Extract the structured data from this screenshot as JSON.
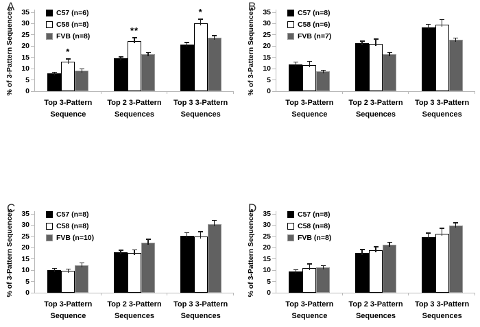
{
  "figure": {
    "background": "#ffffff",
    "axis_color": "#b9b9b9",
    "error_bar_color": "#1a1a1a",
    "text_color": "#000000"
  },
  "chart_data": [
    {
      "type": "bar",
      "panel": "A",
      "ylabel": "% of 3-Pattern Sequences",
      "ylim": [
        0,
        35
      ],
      "yticks": [
        0,
        5,
        10,
        15,
        20,
        25,
        30,
        35
      ],
      "grid": false,
      "legend_position": "top-left-inside",
      "categories": [
        "Top 3-Pattern Sequence",
        "Top 2 3-Pattern Sequences",
        "Top 3 3-Pattern Sequences"
      ],
      "categories_lines": [
        [
          "Top 3-Pattern",
          "Sequence"
        ],
        [
          "Top 2 3-Pattern",
          "Sequences"
        ],
        [
          "Top 3 3-Pattern",
          "Sequences"
        ]
      ],
      "series": [
        {
          "name": "C57",
          "legend_label": "C57 (n=6)",
          "fill": "#000000",
          "border": "none",
          "values": [
            8.0,
            14.5,
            20.8
          ],
          "errors": [
            0.6,
            0.9,
            1.1
          ]
        },
        {
          "name": "C58",
          "legend_label": "C58 (n=8)",
          "fill": "#ffffff",
          "border": "#000000",
          "values": [
            13.0,
            22.2,
            30.0
          ],
          "errors": [
            1.5,
            1.8,
            2.2
          ]
        },
        {
          "name": "FVB",
          "legend_label": "FVB (n=8)",
          "fill": "#616161",
          "border": "#9a9a9a",
          "values": [
            9.2,
            16.5,
            23.7
          ],
          "errors": [
            1.0,
            0.9,
            1.2
          ]
        }
      ],
      "annotations": [
        {
          "group": 0,
          "series": 1,
          "text": "*"
        },
        {
          "group": 1,
          "series": 1,
          "text": "**"
        },
        {
          "group": 2,
          "series": 1,
          "text": "*"
        }
      ]
    },
    {
      "type": "bar",
      "panel": "B",
      "ylabel": "% of 3-Pattern Sequences",
      "ylim": [
        0,
        35
      ],
      "yticks": [
        0,
        5,
        10,
        15,
        20,
        25,
        30,
        35
      ],
      "grid": false,
      "legend_position": "top-left-inside",
      "categories": [
        "Top 3-Pattern Sequence",
        "Top 2 3-Pattern Sequences",
        "Top 3 3-Pattern Sequences"
      ],
      "categories_lines": [
        [
          "Top 3-Pattern",
          "Sequence"
        ],
        [
          "Top 2 3-Pattern",
          "Sequences"
        ],
        [
          "Top 3 3-Pattern",
          "Sequences"
        ]
      ],
      "series": [
        {
          "name": "C57",
          "legend_label": "C57 (n=8)",
          "fill": "#000000",
          "border": "none",
          "values": [
            12.0,
            21.2,
            28.2
          ],
          "errors": [
            1.2,
            1.3,
            1.7
          ]
        },
        {
          "name": "C58",
          "legend_label": "C58 (n=6)",
          "fill": "#ffffff",
          "border": "#000000",
          "values": [
            11.6,
            21.1,
            29.4
          ],
          "errors": [
            1.8,
            2.3,
            2.6
          ]
        },
        {
          "name": "FVB",
          "legend_label": "FVB (n=7)",
          "fill": "#616161",
          "border": "#9a9a9a",
          "values": [
            8.8,
            16.4,
            22.7
          ],
          "errors": [
            0.7,
            1.1,
            1.1
          ]
        }
      ],
      "annotations": []
    },
    {
      "type": "bar",
      "panel": "C",
      "ylabel": "% of 3-Pattern Sequences",
      "ylim": [
        0,
        35
      ],
      "yticks": [
        0,
        5,
        10,
        15,
        20,
        25,
        30,
        35
      ],
      "grid": false,
      "legend_position": "top-left-inside",
      "categories": [
        "Top 3-Pattern Sequence",
        "Top 2 3-Pattern Sequences",
        "Top 3 3-Pattern Sequences"
      ],
      "categories_lines": [
        [
          "Top 3-Pattern",
          "Sequence"
        ],
        [
          "Top 2 3-Pattern",
          "Sequences"
        ],
        [
          "Top 3 3-Pattern",
          "Sequences"
        ]
      ],
      "series": [
        {
          "name": "C57",
          "legend_label": "C57 (n=8)",
          "fill": "#000000",
          "border": "none",
          "values": [
            10.2,
            18.0,
            25.3
          ],
          "errors": [
            0.9,
            1.1,
            1.5
          ]
        },
        {
          "name": "C58",
          "legend_label": "C58 (n=8)",
          "fill": "#ffffff",
          "border": "#000000",
          "values": [
            9.8,
            17.7,
            25.0
          ],
          "errors": [
            0.9,
            1.6,
            2.3
          ]
        },
        {
          "name": "FVB",
          "legend_label": "FVB (n=10)",
          "fill": "#616161",
          "border": "#9a9a9a",
          "values": [
            12.3,
            22.2,
            30.5
          ],
          "errors": [
            1.2,
            1.7,
            1.9
          ]
        }
      ],
      "annotations": []
    },
    {
      "type": "bar",
      "panel": "D",
      "ylabel": "% of 3-Pattern Sequences",
      "ylim": [
        0,
        35
      ],
      "yticks": [
        0,
        5,
        10,
        15,
        20,
        25,
        30,
        35
      ],
      "grid": false,
      "legend_position": "top-left-inside",
      "categories": [
        "Top 3-Pattern Sequence",
        "Top 2 3-Pattern Sequences",
        "Top 3 3-Pattern Sequences"
      ],
      "categories_lines": [
        [
          "Top 3-Pattern",
          "Sequence"
        ],
        [
          "Top 2 3-Pattern",
          "Sequences"
        ],
        [
          "Top 3 3-Pattern",
          "Sequences"
        ]
      ],
      "series": [
        {
          "name": "C57",
          "legend_label": "C57 (n=8)",
          "fill": "#000000",
          "border": "none",
          "values": [
            9.5,
            17.8,
            24.8
          ],
          "errors": [
            0.9,
            1.6,
            1.9
          ]
        },
        {
          "name": "C58",
          "legend_label": "C58 (n=8)",
          "fill": "#ffffff",
          "border": "#000000",
          "values": [
            11.0,
            19.0,
            26.3
          ],
          "errors": [
            2.0,
            1.6,
            2.5
          ]
        },
        {
          "name": "FVB",
          "legend_label": "FVB (n=8)",
          "fill": "#616161",
          "border": "#9a9a9a",
          "values": [
            11.3,
            21.2,
            29.9
          ],
          "errors": [
            1.0,
            1.4,
            1.4
          ]
        }
      ],
      "annotations": []
    }
  ]
}
